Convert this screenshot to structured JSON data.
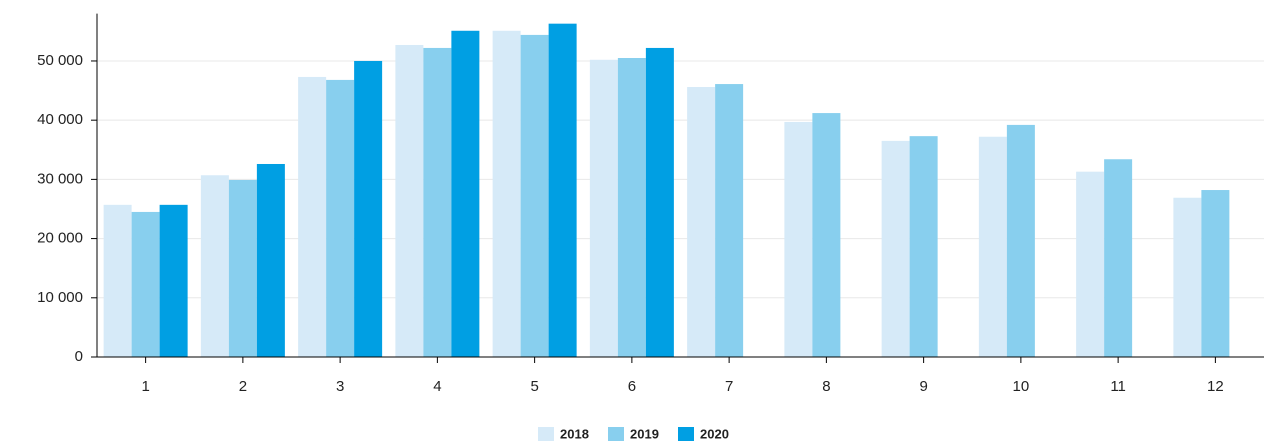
{
  "chart_data": {
    "type": "bar",
    "categories": [
      "1",
      "2",
      "3",
      "4",
      "5",
      "6",
      "7",
      "8",
      "9",
      "10",
      "11",
      "12"
    ],
    "series": [
      {
        "name": "2018",
        "color": "#d6eaf8",
        "values": [
          25700,
          30700,
          47300,
          52700,
          55100,
          50200,
          45600,
          39700,
          36500,
          37200,
          31300,
          26900
        ]
      },
      {
        "name": "2019",
        "color": "#88cfee",
        "values": [
          24500,
          29900,
          46800,
          52200,
          54400,
          50500,
          46100,
          41200,
          37300,
          39200,
          33400,
          28200
        ]
      },
      {
        "name": "2020",
        "color": "#009fe3",
        "values": [
          25700,
          32600,
          50000,
          55100,
          56300,
          52200,
          null,
          null,
          null,
          null,
          null,
          null
        ]
      }
    ],
    "ylim": [
      0,
      58000
    ],
    "yticks": [
      0,
      {
        "value": 10000,
        "label": "10 000"
      },
      {
        "value": 20000,
        "label": "20 000"
      },
      {
        "value": 30000,
        "label": "30 000"
      },
      {
        "value": 40000,
        "label": "40 000"
      },
      {
        "value": 50000,
        "label": "50 000"
      }
    ],
    "grid": true,
    "legend": "bottom"
  }
}
